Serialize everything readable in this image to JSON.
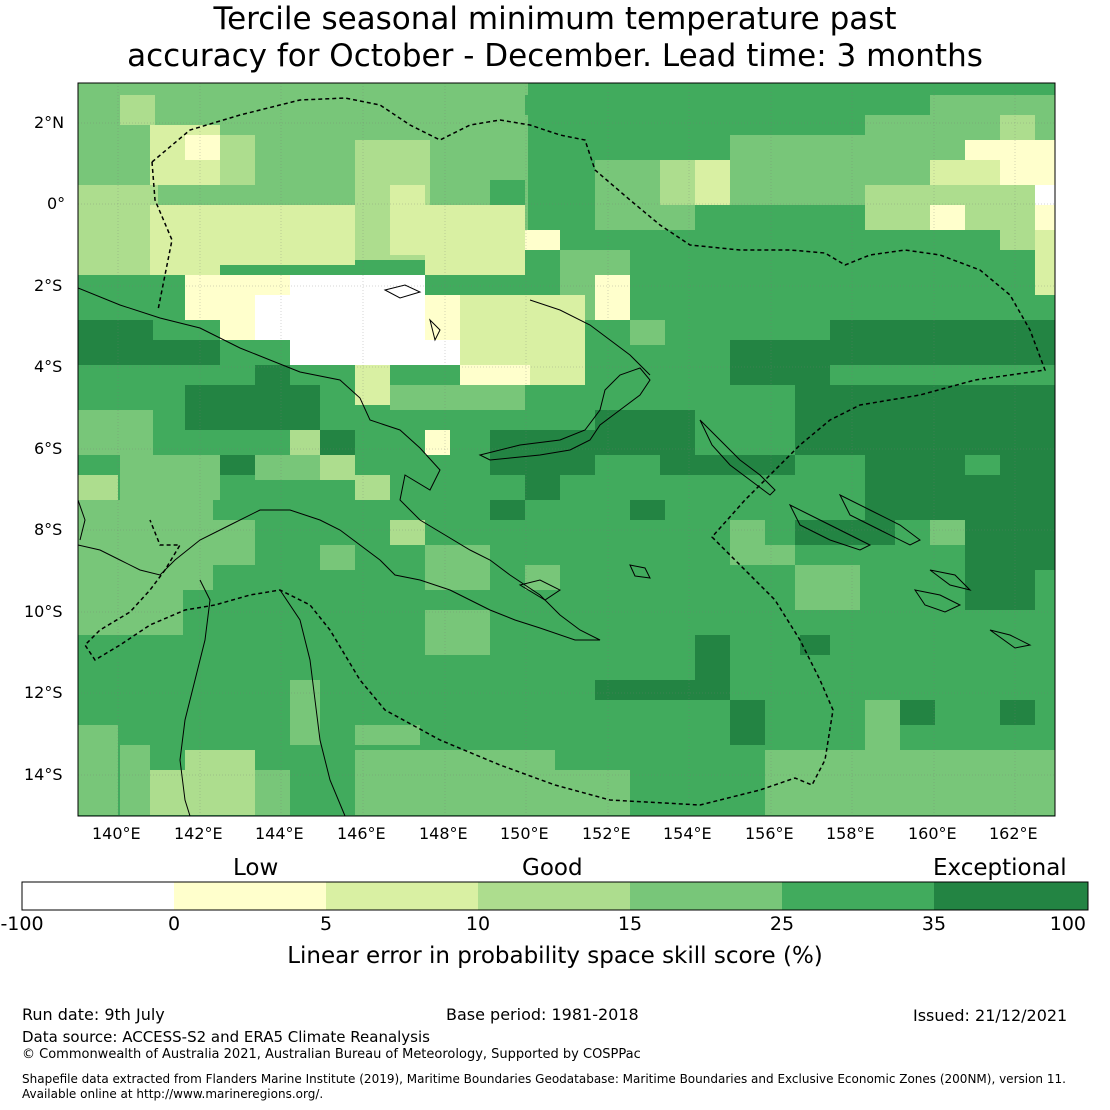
{
  "title": {
    "line1": "Tercile seasonal minimum temperature past",
    "line2": "accuracy for October - December. Lead time: 3 months"
  },
  "map": {
    "lat_labels": [
      "2°N",
      "0°",
      "2°S",
      "4°S",
      "6°S",
      "8°S",
      "10°S",
      "12°S",
      "14°S"
    ],
    "lon_labels": [
      "140°E",
      "142°E",
      "144°E",
      "146°E",
      "148°E",
      "150°E",
      "152°E",
      "154°E",
      "156°E",
      "158°E",
      "160°E",
      "162°E"
    ],
    "extent": {
      "lon_min": 139.05,
      "lon_max": 163.0,
      "lat_min": -15.0,
      "lat_max": 3.0
    }
  },
  "legend": {
    "categories": [
      "Low",
      "Good",
      "Exceptional"
    ],
    "ticks": [
      "-100",
      "0",
      "5",
      "10",
      "15",
      "25",
      "35",
      "100"
    ],
    "colors": [
      "#ffffff",
      "#ffffcc",
      "#d9f0a3",
      "#addd8e",
      "#78c679",
      "#41ab5d",
      "#238443"
    ],
    "label": "Linear error in probability space skill score (%)"
  },
  "footer": {
    "run_date": "Run date: 9th July",
    "base_period": "Base period: 1981-2018",
    "issued": "Issued: 21/12/2021",
    "data_source": "Data source: ACCESS-S2 and ERA5 Climate Reanalysis",
    "copyright": "© Commonwealth of Australia 2021, Australian Bureau of Meteorology, Supported by COSPPac",
    "shapefile_line1": "Shapefile data extracted from Flanders Marine Institute (2019), Maritime Boundaries Geodatabase: Maritime Boundaries and Exclusive Economic Zones (200NM), version 11.",
    "shapefile_line2": "Available online at http://www.marineregions.org/."
  }
}
